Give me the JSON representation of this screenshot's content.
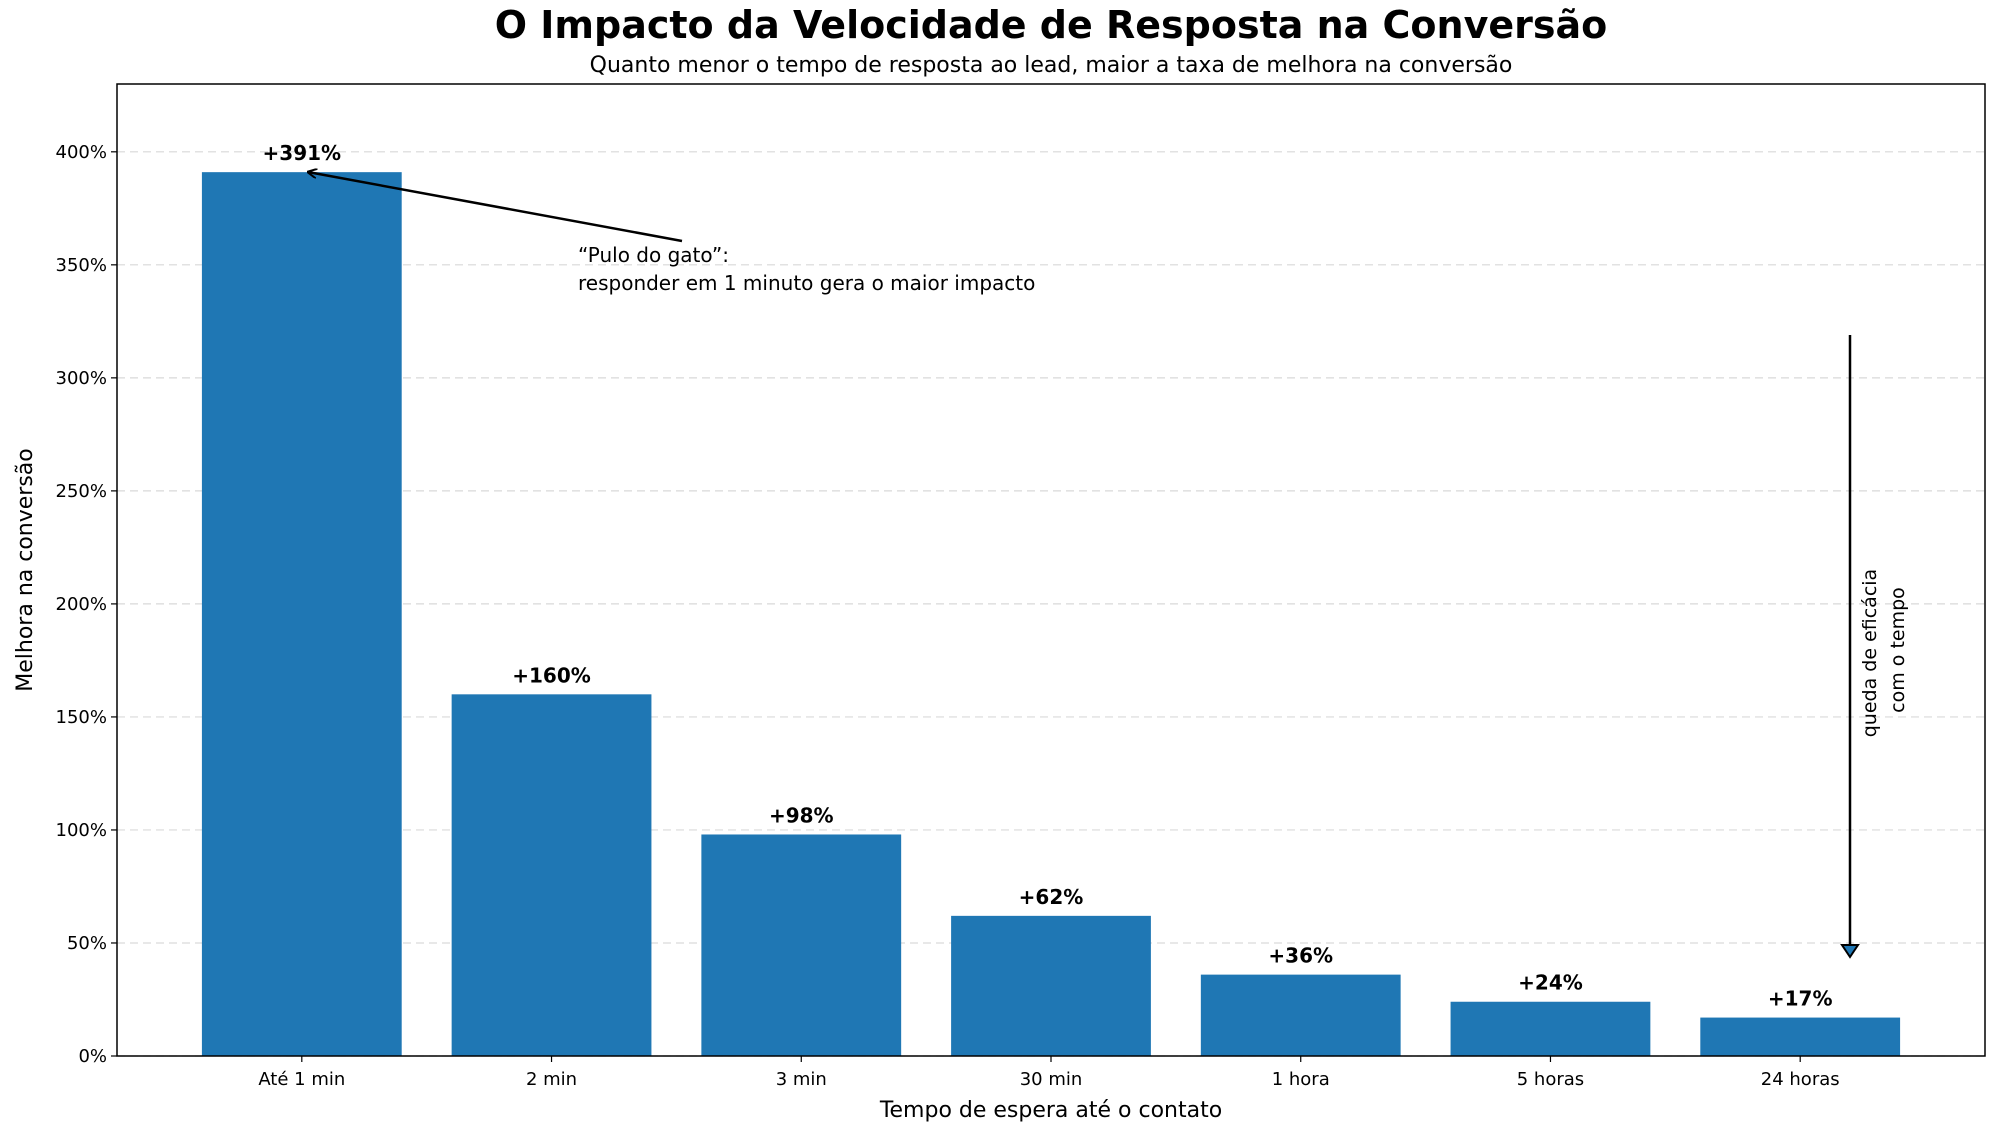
{
  "chart_data": {
    "type": "bar",
    "title": "O Impacto da Velocidade de Resposta na Conversão",
    "subtitle": "Quanto menor o tempo de resposta ao lead, maior a taxa de melhora na conversão",
    "xlabel": "Tempo de espera até o contato",
    "ylabel": "Melhora na conversão",
    "categories": [
      "Até 1 min",
      "2 min",
      "3 min",
      "30 min",
      "1 hora",
      "5 horas",
      "24 horas"
    ],
    "values": [
      391,
      160,
      98,
      62,
      36,
      24,
      17
    ],
    "data_labels": [
      "+391%",
      "+160%",
      "+98%",
      "+62%",
      "+36%",
      "+24%",
      "+17%"
    ],
    "ylim": [
      0,
      430
    ],
    "yticks": [
      0,
      50,
      100,
      150,
      200,
      250,
      300,
      350,
      400
    ],
    "ytick_labels": [
      "0%",
      "50%",
      "100%",
      "150%",
      "200%",
      "250%",
      "300%",
      "350%",
      "400%"
    ],
    "grid": "y dashed",
    "bar_color": "#1f77b4",
    "annotations": [
      {
        "text_lines": [
          "“Pulo do gato”:",
          "responder em 1 minuto gera o maior impacto"
        ],
        "arrow_to": {
          "x": "Até 1 min",
          "y": 391
        }
      },
      {
        "text_lines": [
          "queda de eficácia",
          "com o tempo"
        ],
        "arrow": "downward",
        "arrow_from_y": 320,
        "arrow_to_y": 45
      }
    ]
  }
}
